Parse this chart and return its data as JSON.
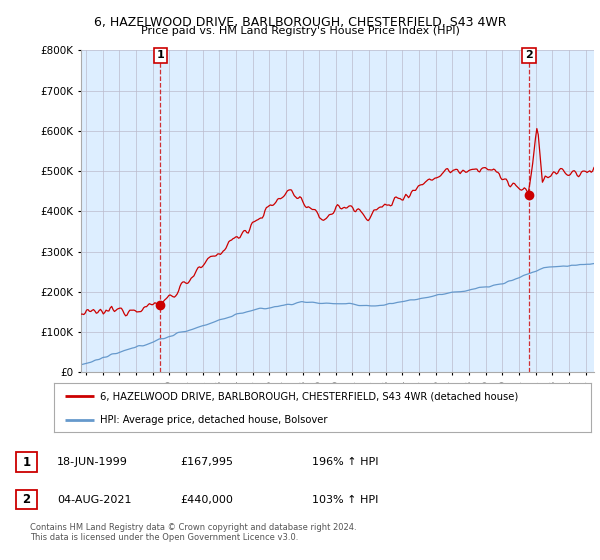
{
  "title": "6, HAZELWOOD DRIVE, BARLBOROUGH, CHESTERFIELD, S43 4WR",
  "subtitle": "Price paid vs. HM Land Registry's House Price Index (HPI)",
  "legend_line1": "6, HAZELWOOD DRIVE, BARLBOROUGH, CHESTERFIELD, S43 4WR (detached house)",
  "legend_line2": "HPI: Average price, detached house, Bolsover",
  "red_color": "#cc0000",
  "blue_color": "#6699cc",
  "marker_color": "#cc0000",
  "plot_bg_color": "#ddeeff",
  "ylim": [
    0,
    800000
  ],
  "yticks": [
    0,
    100000,
    200000,
    300000,
    400000,
    500000,
    600000,
    700000,
    800000
  ],
  "ytick_labels": [
    "£0",
    "£100K",
    "£200K",
    "£300K",
    "£400K",
    "£500K",
    "£600K",
    "£700K",
    "£800K"
  ],
  "xlim_start": 1994.7,
  "xlim_end": 2025.5,
  "transaction1_date": "18-JUN-1999",
  "transaction1_price": "£167,995",
  "transaction1_hpi": "196% ↑ HPI",
  "transaction1_x": 1999.46,
  "transaction1_y": 167995,
  "transaction2_date": "04-AUG-2021",
  "transaction2_price": "£440,000",
  "transaction2_hpi": "103% ↑ HPI",
  "transaction2_x": 2021.59,
  "transaction2_y": 440000,
  "copyright": "Contains HM Land Registry data © Crown copyright and database right 2024.\nThis data is licensed under the Open Government Licence v3.0.",
  "background_color": "#ffffff",
  "grid_color": "#bbbbcc"
}
